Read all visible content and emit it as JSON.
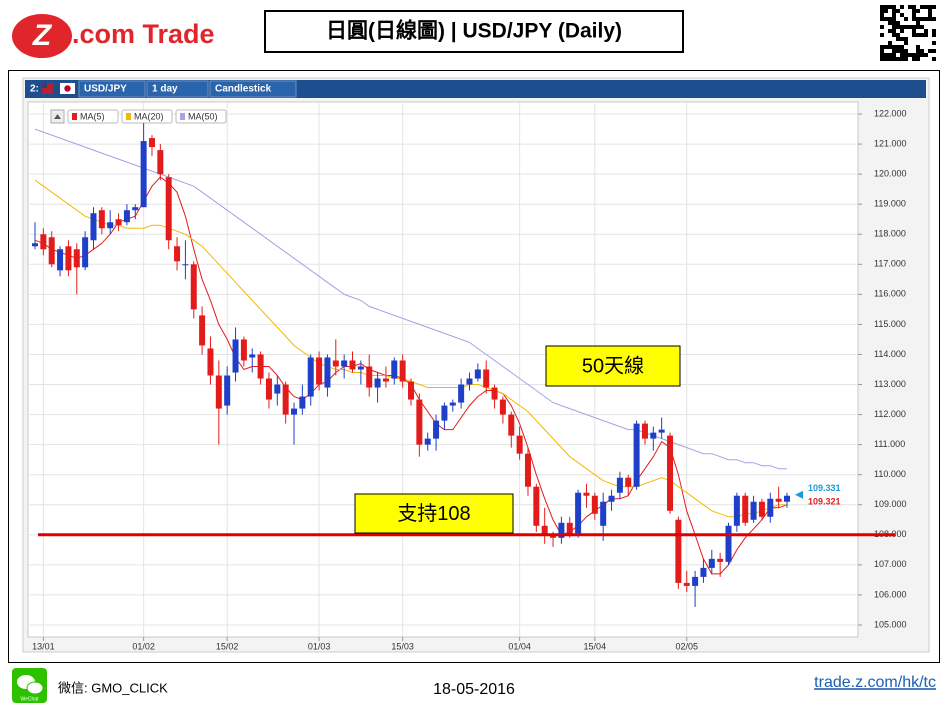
{
  "header": {
    "logo_mark": "Z",
    "logo_text": ".com Trade",
    "title": "日圓(日線圖) | USD/JPY (Daily)"
  },
  "toolbar": {
    "slot": "2:",
    "symbol": "USD/JPY",
    "interval": "1 day",
    "style": "Candlestick"
  },
  "chart_data": {
    "type": "candlestick",
    "categories": [
      null,
      "13/01",
      null,
      null,
      null,
      null,
      null,
      null,
      null,
      null,
      null,
      null,
      null,
      "01/02",
      null,
      null,
      null,
      null,
      null,
      null,
      null,
      null,
      null,
      "15/02",
      null,
      null,
      null,
      null,
      null,
      null,
      null,
      null,
      null,
      null,
      "01/03",
      null,
      null,
      null,
      null,
      null,
      null,
      null,
      null,
      null,
      "15/03",
      null,
      null,
      null,
      null,
      null,
      null,
      null,
      null,
      null,
      null,
      null,
      null,
      null,
      "01/04",
      null,
      null,
      null,
      null,
      null,
      null,
      null,
      null,
      "15/04",
      null,
      null,
      null,
      null,
      null,
      null,
      null,
      null,
      null,
      null,
      "02/05",
      null,
      null,
      null,
      null,
      null,
      null,
      null,
      null,
      null,
      null,
      null,
      null
    ],
    "up_color": "#1e3fc8",
    "down_color": "#e41b1b",
    "ohlc": [
      [
        117.6,
        118.4,
        117.5,
        117.7
      ],
      [
        118.0,
        118.2,
        117.3,
        117.5
      ],
      [
        117.9,
        118.1,
        116.9,
        117.0
      ],
      [
        116.8,
        117.6,
        116.6,
        117.5
      ],
      [
        117.6,
        117.8,
        116.6,
        116.8
      ],
      [
        117.5,
        117.7,
        116.0,
        116.9
      ],
      [
        116.9,
        118.1,
        116.8,
        117.9
      ],
      [
        117.8,
        118.9,
        117.5,
        118.7
      ],
      [
        118.8,
        118.9,
        118.0,
        118.2
      ],
      [
        118.2,
        118.8,
        118.0,
        118.4
      ],
      [
        118.5,
        118.7,
        118.1,
        118.3
      ],
      [
        118.4,
        119.0,
        118.3,
        118.8
      ],
      [
        118.8,
        119.0,
        118.5,
        118.9
      ],
      [
        118.9,
        121.7,
        118.9,
        121.1
      ],
      [
        121.2,
        121.3,
        120.6,
        120.9
      ],
      [
        120.8,
        121.0,
        119.8,
        120.0
      ],
      [
        119.9,
        120.0,
        117.5,
        117.8
      ],
      [
        117.6,
        117.9,
        116.8,
        117.1
      ],
      [
        117.0,
        117.8,
        116.5,
        117.0
      ],
      [
        117.0,
        117.1,
        115.2,
        115.5
      ],
      [
        115.3,
        115.6,
        114.0,
        114.3
      ],
      [
        114.2,
        114.6,
        113.0,
        113.3
      ],
      [
        113.3,
        113.8,
        111.0,
        112.2
      ],
      [
        112.3,
        113.6,
        112.0,
        113.3
      ],
      [
        113.4,
        114.9,
        113.1,
        114.5
      ],
      [
        114.5,
        114.6,
        113.6,
        113.8
      ],
      [
        113.9,
        114.2,
        113.4,
        114.0
      ],
      [
        114.0,
        114.1,
        113.0,
        113.2
      ],
      [
        113.2,
        113.4,
        112.2,
        112.5
      ],
      [
        112.7,
        113.3,
        112.3,
        113.0
      ],
      [
        113.0,
        113.1,
        111.7,
        112.0
      ],
      [
        112.0,
        112.4,
        111.0,
        112.2
      ],
      [
        112.2,
        113.0,
        112.0,
        112.6
      ],
      [
        112.6,
        114.0,
        112.3,
        113.9
      ],
      [
        113.9,
        114.1,
        112.8,
        113.0
      ],
      [
        112.9,
        114.0,
        112.6,
        113.9
      ],
      [
        113.8,
        114.5,
        113.3,
        113.6
      ],
      [
        113.6,
        114.0,
        113.2,
        113.8
      ],
      [
        113.8,
        114.1,
        113.4,
        113.5
      ],
      [
        113.5,
        113.8,
        113.0,
        113.6
      ],
      [
        113.6,
        114.0,
        112.6,
        112.9
      ],
      [
        112.9,
        113.4,
        112.4,
        113.2
      ],
      [
        113.2,
        113.6,
        112.9,
        113.1
      ],
      [
        113.2,
        113.9,
        113.0,
        113.8
      ],
      [
        113.8,
        114.0,
        112.9,
        113.1
      ],
      [
        113.1,
        113.2,
        112.3,
        112.5
      ],
      [
        112.5,
        112.7,
        110.6,
        111.0
      ],
      [
        111.0,
        111.4,
        110.8,
        111.2
      ],
      [
        111.2,
        112.0,
        110.8,
        111.8
      ],
      [
        111.8,
        112.4,
        111.5,
        112.3
      ],
      [
        112.3,
        112.5,
        112.1,
        112.4
      ],
      [
        112.4,
        113.2,
        112.2,
        113.0
      ],
      [
        113.0,
        113.4,
        112.8,
        113.2
      ],
      [
        113.2,
        113.7,
        113.1,
        113.5
      ],
      [
        113.5,
        113.8,
        112.7,
        112.9
      ],
      [
        112.9,
        113.0,
        112.2,
        112.5
      ],
      [
        112.5,
        112.6,
        111.7,
        112.0
      ],
      [
        112.0,
        112.1,
        110.9,
        111.3
      ],
      [
        111.3,
        111.6,
        110.5,
        110.7
      ],
      [
        110.7,
        110.9,
        109.3,
        109.6
      ],
      [
        109.6,
        109.7,
        108.1,
        108.3
      ],
      [
        108.3,
        108.9,
        107.7,
        108.0
      ],
      [
        108.0,
        108.1,
        107.6,
        107.9
      ],
      [
        107.9,
        108.6,
        107.7,
        108.4
      ],
      [
        108.4,
        108.6,
        107.9,
        108.0
      ],
      [
        108.0,
        109.5,
        107.9,
        109.4
      ],
      [
        109.4,
        109.7,
        108.9,
        109.3
      ],
      [
        109.3,
        109.4,
        108.5,
        108.7
      ],
      [
        108.3,
        109.4,
        107.8,
        109.1
      ],
      [
        109.1,
        109.5,
        108.8,
        109.3
      ],
      [
        109.4,
        110.1,
        109.2,
        109.9
      ],
      [
        109.9,
        110.0,
        109.3,
        109.6
      ],
      [
        109.6,
        111.8,
        109.5,
        111.7
      ],
      [
        111.7,
        111.8,
        111.0,
        111.2
      ],
      [
        111.2,
        111.6,
        110.8,
        111.4
      ],
      [
        111.4,
        111.9,
        111.2,
        111.5
      ],
      [
        111.3,
        111.4,
        108.7,
        108.8
      ],
      [
        108.5,
        108.6,
        106.2,
        106.4
      ],
      [
        106.4,
        106.8,
        106.1,
        106.3
      ],
      [
        106.3,
        106.8,
        105.6,
        106.6
      ],
      [
        106.6,
        107.2,
        106.4,
        106.9
      ],
      [
        106.9,
        107.5,
        106.7,
        107.2
      ],
      [
        107.2,
        107.4,
        106.6,
        107.1
      ],
      [
        107.1,
        108.4,
        107.0,
        108.3
      ],
      [
        108.3,
        109.4,
        108.1,
        109.3
      ],
      [
        109.3,
        109.4,
        108.3,
        108.4
      ],
      [
        108.5,
        109.3,
        108.4,
        109.1
      ],
      [
        109.1,
        109.2,
        108.5,
        108.6
      ],
      [
        108.6,
        109.4,
        108.4,
        109.2
      ],
      [
        109.2,
        109.6,
        108.9,
        109.1
      ],
      [
        109.1,
        109.4,
        108.9,
        109.3
      ]
    ],
    "series": [
      {
        "name": "MA(5)",
        "color": "#e31c1c",
        "values": [
          117.8,
          117.7,
          117.5,
          117.4,
          117.3,
          117.2,
          117.3,
          117.5,
          117.7,
          118.0,
          118.4,
          118.5,
          118.6,
          119.1,
          119.6,
          119.9,
          119.7,
          119.4,
          118.6,
          117.5,
          116.5,
          115.8,
          115.0,
          114.5,
          113.9,
          113.5,
          113.6,
          113.6,
          113.6,
          113.3,
          112.9,
          112.6,
          112.5,
          112.7,
          113.0,
          113.1,
          113.4,
          113.6,
          113.6,
          113.7,
          113.5,
          113.4,
          113.3,
          113.3,
          113.2,
          113.0,
          112.5,
          112.1,
          111.7,
          111.5,
          111.5,
          111.9,
          112.3,
          112.6,
          112.8,
          112.8,
          112.7,
          112.3,
          111.7,
          110.9,
          110.0,
          109.2,
          108.5,
          108.0,
          108.1,
          108.3,
          108.6,
          108.8,
          109.0,
          109.2,
          109.2,
          109.3,
          109.8,
          110.2,
          110.6,
          111.1,
          110.9,
          110.0,
          108.8,
          108.0,
          107.2,
          106.7,
          106.7,
          107.0,
          107.5,
          107.9,
          108.2,
          108.5,
          108.9,
          108.9,
          109.0
        ]
      },
      {
        "name": "MA(20)",
        "color": "#f5b800",
        "values": [
          119.8,
          119.6,
          119.4,
          119.2,
          119.0,
          118.8,
          118.6,
          118.5,
          118.4,
          118.3,
          118.3,
          118.2,
          118.2,
          118.2,
          118.3,
          118.3,
          118.2,
          118.1,
          118.0,
          117.8,
          117.6,
          117.3,
          117.0,
          116.7,
          116.4,
          116.1,
          115.8,
          115.5,
          115.2,
          114.9,
          114.6,
          114.3,
          114.1,
          113.9,
          113.7,
          113.6,
          113.5,
          113.5,
          113.4,
          113.4,
          113.3,
          113.3,
          113.3,
          113.2,
          113.2,
          113.1,
          113.0,
          112.9,
          112.9,
          112.9,
          112.9,
          112.9,
          113.0,
          113.0,
          112.9,
          112.8,
          112.7,
          112.5,
          112.3,
          112.1,
          111.8,
          111.5,
          111.2,
          110.9,
          110.6,
          110.4,
          110.2,
          110.0,
          109.8,
          109.7,
          109.6,
          109.6,
          109.6,
          109.7,
          109.8,
          109.9,
          109.8,
          109.6,
          109.4,
          109.2,
          109.0,
          108.8,
          108.7,
          108.6,
          108.6,
          108.7,
          108.7,
          108.8,
          108.9,
          109.0,
          109.0
        ]
      },
      {
        "name": "MA(50)",
        "color": "#a3a3e6",
        "values": [
          121.5,
          121.4,
          121.3,
          121.2,
          121.1,
          121.0,
          120.9,
          120.8,
          120.7,
          120.6,
          120.5,
          120.4,
          120.3,
          120.2,
          120.1,
          120.0,
          119.9,
          119.8,
          119.7,
          119.6,
          119.4,
          119.2,
          119.0,
          118.8,
          118.6,
          118.4,
          118.2,
          118.0,
          117.8,
          117.6,
          117.4,
          117.2,
          117.0,
          116.8,
          116.6,
          116.4,
          116.2,
          116.0,
          115.9,
          115.8,
          115.6,
          115.5,
          115.4,
          115.3,
          115.2,
          115.1,
          115.0,
          114.9,
          114.8,
          114.7,
          114.6,
          114.5,
          114.4,
          114.2,
          114.0,
          113.8,
          113.6,
          113.4,
          113.2,
          113.0,
          112.8,
          112.6,
          112.4,
          112.3,
          112.2,
          112.1,
          112.0,
          111.9,
          111.8,
          111.7,
          111.6,
          111.5,
          111.5,
          111.4,
          111.3,
          111.2,
          111.1,
          111.0,
          110.9,
          110.8,
          110.7,
          110.7,
          110.6,
          110.5,
          110.5,
          110.4,
          110.4,
          110.3,
          110.3,
          110.2,
          110.2
        ]
      }
    ],
    "ylim": [
      104.6,
      122.4
    ],
    "yticks": [
      {
        "value": 105,
        "label": "105.000"
      },
      {
        "value": 106,
        "label": "106.000"
      },
      {
        "value": 107,
        "label": "107.000"
      },
      {
        "value": 108,
        "label": "108.000"
      },
      {
        "value": 109,
        "label": "109.000"
      },
      {
        "value": 110,
        "label": "110.000"
      },
      {
        "value": 111,
        "label": "111.000"
      },
      {
        "value": 112,
        "label": "112.000"
      },
      {
        "value": 113,
        "label": "113.000"
      },
      {
        "value": 114,
        "label": "114.000"
      },
      {
        "value": 115,
        "label": "115.000"
      },
      {
        "value": 116,
        "label": "116.000"
      },
      {
        "value": 117,
        "label": "117.000"
      },
      {
        "value": 118,
        "label": "118.000"
      },
      {
        "value": 119,
        "label": "119.000"
      },
      {
        "value": 120,
        "label": "120.000"
      },
      {
        "value": 121,
        "label": "121.000"
      },
      {
        "value": 122,
        "label": "122.000"
      }
    ],
    "grid": true,
    "last_prices": [
      {
        "value": 109.331,
        "color": "#1a9ad6"
      },
      {
        "value": 109.321,
        "color": "#e02020"
      }
    ],
    "reference_lines": [
      {
        "value": 108,
        "color": "#e00000"
      }
    ],
    "annotations": [
      {
        "text": "50天線"
      },
      {
        "text": "支持108"
      }
    ]
  },
  "footer": {
    "wechat_label": "WeChat",
    "wechat": "微信: GMO_CLICK",
    "date": "18-05-2016",
    "link": "trade.z.com/hk/tc"
  }
}
